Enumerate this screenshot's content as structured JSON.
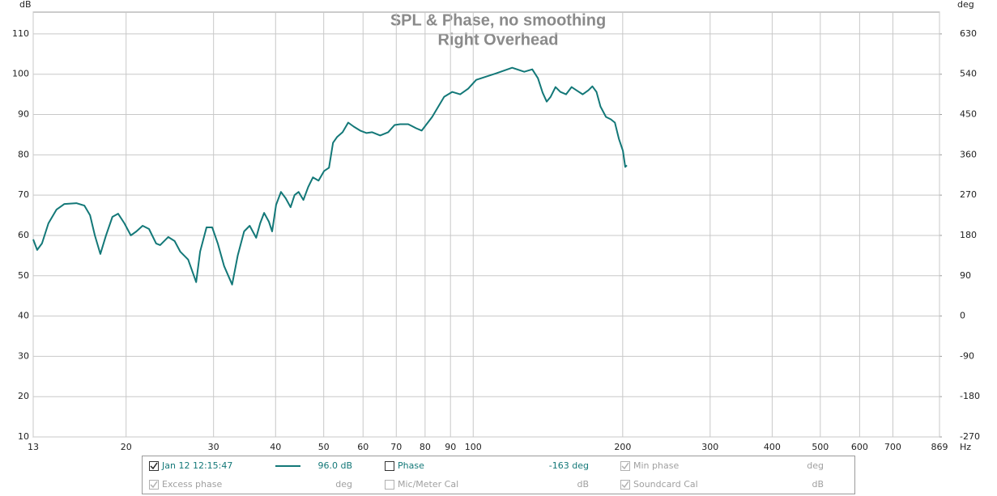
{
  "chart_data": {
    "type": "line",
    "title": "SPL & Phase, no smoothing",
    "subtitle": "Right Overhead",
    "ylabel": "dB",
    "y2label": "deg",
    "xunit": "Hz",
    "log_x": true,
    "grid": true,
    "xlim": [
      13,
      869
    ],
    "xticks": [
      13,
      20,
      30,
      40,
      50,
      60,
      70,
      80,
      90,
      100,
      200,
      300,
      400,
      500,
      600,
      700,
      869
    ],
    "ylim": [
      10,
      115.4
    ],
    "yticks": [
      10,
      20,
      30,
      40,
      50,
      60,
      70,
      80,
      90,
      100,
      110
    ],
    "y2lim": [
      -270,
      678.6
    ],
    "y2ticks": [
      -270,
      -180,
      -90,
      0,
      90,
      180,
      270,
      360,
      450,
      540,
      630
    ],
    "x": [
      13.0,
      13.24,
      13.54,
      13.95,
      14.48,
      15.02,
      15.88,
      16.48,
      16.92,
      17.3,
      17.75,
      18.22,
      18.77,
      19.27,
      19.84,
      20.44,
      20.98,
      21.59,
      22.24,
      22.99,
      23.42,
      24.31,
      25.04,
      25.7,
      26.67,
      27.68,
      28.19,
      29.04,
      29.81,
      30.59,
      31.5,
      32.7,
      33.55,
      34.57,
      35.48,
      36.55,
      37.23,
      37.93,
      38.78,
      39.37,
      40.1,
      41.0,
      41.93,
      42.88,
      43.68,
      44.5,
      45.5,
      46.52,
      47.57,
      48.82,
      50.1,
      51.23,
      52.2,
      53.17,
      54.57,
      56.01,
      57.48,
      59.21,
      60.99,
      62.6,
      64.97,
      67.41,
      69.45,
      71.28,
      73.97,
      76.76,
      78.77,
      82.66,
      87.4,
      90.7,
      94.14,
      97.7,
      101.4,
      111.2,
      119.8,
      126.7,
      131.5,
      135.0,
      138.0,
      140.6,
      143.2,
      146.5,
      149.8,
      153.8,
      157.8,
      161.4,
      166.2,
      170.6,
      173.8,
      177.1,
      180.4,
      185.1,
      189.3,
      192.9,
      196.5,
      200.2,
      202.4,
      203.9
    ],
    "series": [
      {
        "name": "Jan 12 12:15:47",
        "color": "#137878",
        "values": [
          59,
          56.4,
          58,
          63,
          66.4,
          67.8,
          68,
          67.4,
          65,
          60,
          55.4,
          60,
          64.6,
          65.4,
          63,
          60,
          61,
          62.4,
          61.6,
          58,
          57.6,
          59.6,
          58.6,
          56,
          54,
          48.4,
          56,
          62,
          62,
          58,
          52.4,
          47.8,
          55,
          61,
          62.4,
          59.4,
          63,
          65.6,
          63.4,
          61,
          67.6,
          70.8,
          69.2,
          67,
          70,
          70.8,
          68.8,
          72,
          74.4,
          73.6,
          76,
          76.8,
          83,
          84.4,
          85.6,
          88,
          87,
          86,
          85.4,
          85.6,
          84.8,
          85.6,
          87.4,
          87.6,
          87.6,
          86.6,
          86,
          89.4,
          94.4,
          95.6,
          95,
          96.4,
          98.6,
          100.2,
          101.6,
          100.6,
          101.2,
          99,
          95.4,
          93.2,
          94.4,
          96.8,
          95.6,
          95,
          96.8,
          96,
          95,
          96,
          97,
          95.6,
          92,
          89.4,
          88.8,
          88,
          84,
          81,
          77,
          77.4
        ]
      }
    ]
  },
  "legend_panel": {
    "items": [
      {
        "readout": "96.0 dB",
        "checked": true,
        "enabled": true
      },
      {
        "label": "Phase",
        "readout": "-163 deg",
        "checked": false,
        "enabled": true
      },
      {
        "label": "Min phase",
        "readout": "deg",
        "checked": true,
        "enabled": false
      },
      {
        "label": "Excess phase",
        "readout": "deg",
        "checked": true,
        "enabled": false
      },
      {
        "label": "Mic/Meter Cal",
        "readout": "dB",
        "checked": false,
        "enabled": false
      },
      {
        "label": "Soundcard Cal",
        "readout": "dB",
        "checked": true,
        "enabled": false
      }
    ]
  }
}
